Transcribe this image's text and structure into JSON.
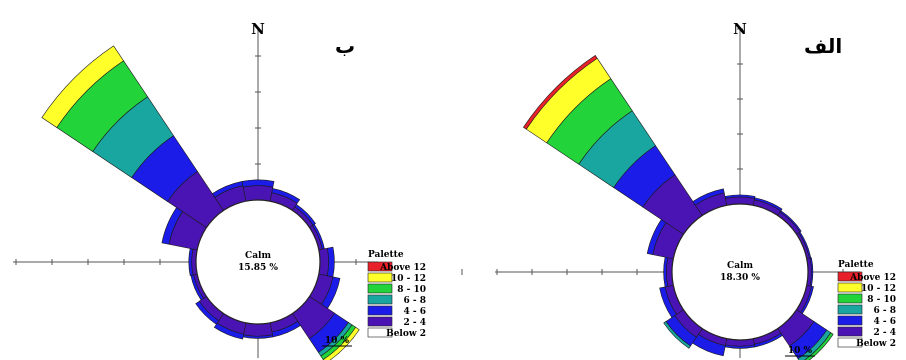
{
  "palette": {
    "title": "Palette",
    "classes": [
      {
        "label": "Above 12",
        "color": "#e8202a"
      },
      {
        "label": "10 - 12",
        "color": "#ffff2a"
      },
      {
        "label": "8 - 10",
        "color": "#22d43a"
      },
      {
        "label": "6 - 8",
        "color": "#1aa6a0"
      },
      {
        "label": "4 - 6",
        "color": "#1c1ce8"
      },
      {
        "label": "2 - 4",
        "color": "#4a14b4"
      },
      {
        "label": "Below 2",
        "color": "#ffffff"
      }
    ]
  },
  "chart_data": [
    {
      "type": "windrose",
      "panel_label": "ب",
      "north_label": "N",
      "calm_label": "Calm",
      "calm_value": "15.85 %",
      "scale_label": "10 %",
      "directions": [
        {
          "dir_deg": 0,
          "cumulative": [
            2,
            2.8,
            2.8,
            2.8,
            2.8,
            2.8
          ]
        },
        {
          "dir_deg": 22.5,
          "cumulative": [
            1.2,
            1.8,
            1.8,
            1.8,
            1.8,
            1.8
          ]
        },
        {
          "dir_deg": 45,
          "cumulative": [
            0.6,
            1.0,
            1.0,
            1.0,
            1.0,
            1.0
          ]
        },
        {
          "dir_deg": 67.5,
          "cumulative": [
            0.5,
            0.8,
            0.8,
            0.8,
            0.8,
            0.8
          ]
        },
        {
          "dir_deg": 90,
          "cumulative": [
            1.2,
            2.0,
            2.0,
            2.0,
            2.0,
            2.0
          ]
        },
        {
          "dir_deg": 112.5,
          "cumulative": [
            2.0,
            3.0,
            3.0,
            3.0,
            3.0,
            3.0
          ]
        },
        {
          "dir_deg": 135,
          "cumulative": [
            4.2,
            6.5,
            7.1,
            7.7,
            8.3,
            8.3
          ]
        },
        {
          "dir_deg": 157.5,
          "cumulative": [
            1.3,
            2.0,
            2.0,
            2.0,
            2.0,
            2.0
          ]
        },
        {
          "dir_deg": 180,
          "cumulative": [
            1.7,
            2.0,
            2.0,
            2.0,
            2.0,
            2.0
          ]
        },
        {
          "dir_deg": 202.5,
          "cumulative": [
            1.6,
            2.3,
            2.3,
            2.3,
            2.3,
            2.3
          ]
        },
        {
          "dir_deg": 225,
          "cumulative": [
            1.2,
            1.8,
            1.8,
            1.8,
            1.8,
            1.8
          ]
        },
        {
          "dir_deg": 247.5,
          "cumulative": [
            0.5,
            0.9,
            0.9,
            0.9,
            0.9,
            0.9
          ]
        },
        {
          "dir_deg": 270,
          "cumulative": [
            0.6,
            1.0,
            1.0,
            1.0,
            1.0,
            1.0
          ]
        },
        {
          "dir_deg": 292.5,
          "cumulative": [
            4.0,
            5.0,
            5.0,
            5.0,
            5.0,
            5.0
          ]
        },
        {
          "dir_deg": 315,
          "cumulative": [
            6.5,
            12.5,
            19.0,
            25.0,
            27.5,
            27.5
          ]
        },
        {
          "dir_deg": 337.5,
          "cumulative": [
            2.2,
            2.8,
            2.8,
            2.8,
            2.8,
            2.8
          ]
        }
      ]
    },
    {
      "type": "windrose",
      "panel_label": "الف",
      "north_label": "N",
      "calm_label": "Calm",
      "calm_value": "18.30 %",
      "scale_label": "10 %",
      "directions": [
        {
          "dir_deg": 0,
          "cumulative": [
            1.0,
            1.3,
            1.3,
            1.3,
            1.3,
            1.3
          ]
        },
        {
          "dir_deg": 22.5,
          "cumulative": [
            0.8,
            1.1,
            1.1,
            1.1,
            1.1,
            1.1
          ]
        },
        {
          "dir_deg": 45,
          "cumulative": [
            0.6,
            0.8,
            0.8,
            0.8,
            0.8,
            0.8
          ]
        },
        {
          "dir_deg": 67.5,
          "cumulative": [
            0.4,
            0.6,
            0.6,
            0.6,
            0.6,
            0.6
          ]
        },
        {
          "dir_deg": 90,
          "cumulative": [
            0.5,
            0.7,
            0.7,
            0.7,
            0.7,
            0.7
          ]
        },
        {
          "dir_deg": 112.5,
          "cumulative": [
            0.7,
            1.0,
            1.0,
            1.0,
            1.0,
            1.0
          ]
        },
        {
          "dir_deg": 135,
          "cumulative": [
            3.0,
            5.2,
            5.9,
            6.3,
            6.3,
            6.3
          ]
        },
        {
          "dir_deg": 157.5,
          "cumulative": [
            0.8,
            1.2,
            1.2,
            1.2,
            1.2,
            1.2
          ]
        },
        {
          "dir_deg": 180,
          "cumulative": [
            0.9,
            1.2,
            1.2,
            1.2,
            1.2,
            1.2
          ]
        },
        {
          "dir_deg": 202.5,
          "cumulative": [
            1.0,
            2.5,
            2.5,
            2.5,
            2.5,
            2.5
          ]
        },
        {
          "dir_deg": 225,
          "cumulative": [
            1.5,
            3.0,
            3.4,
            3.4,
            3.4,
            3.4
          ]
        },
        {
          "dir_deg": 247.5,
          "cumulative": [
            1.2,
            2.0,
            2.0,
            2.0,
            2.0,
            2.0
          ]
        },
        {
          "dir_deg": 270,
          "cumulative": [
            0.8,
            1.2,
            1.2,
            1.2,
            1.2,
            1.2
          ]
        },
        {
          "dir_deg": 292.5,
          "cumulative": [
            3.0,
            3.8,
            3.8,
            3.8,
            3.8,
            3.8
          ]
        },
        {
          "dir_deg": 315,
          "cumulative": [
            7.0,
            12.0,
            18.0,
            23.5,
            27.0,
            27.5
          ]
        },
        {
          "dir_deg": 337.5,
          "cumulative": [
            1.8,
            2.4,
            2.4,
            2.4,
            2.4,
            2.4
          ]
        }
      ]
    }
  ]
}
